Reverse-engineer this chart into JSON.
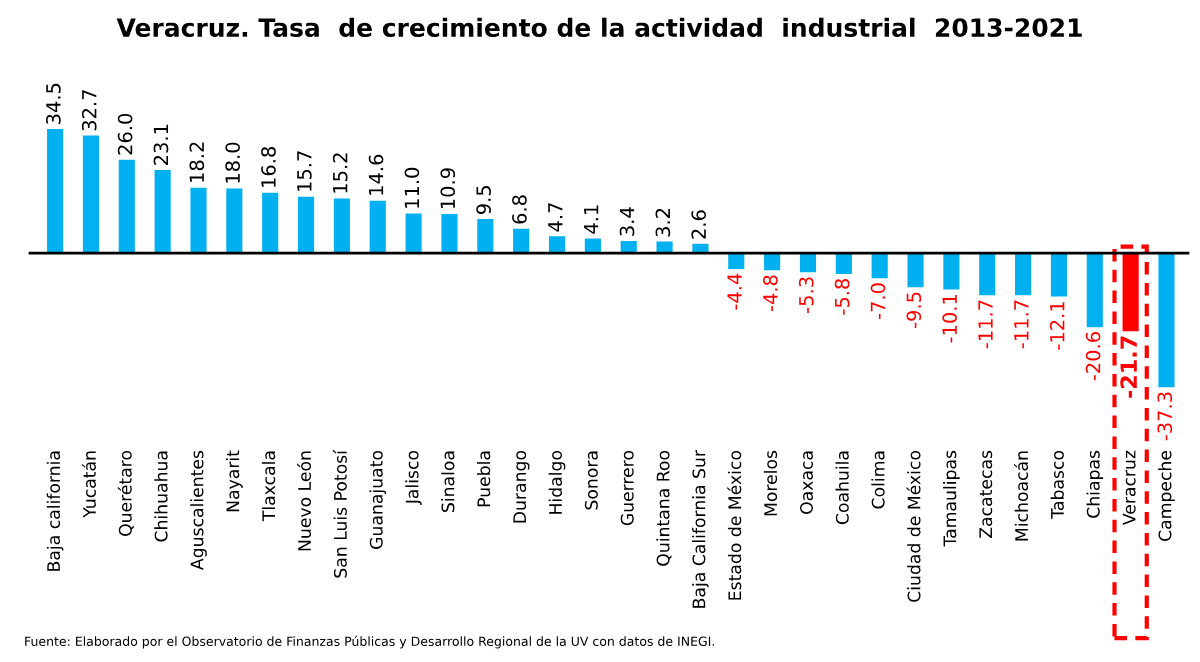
{
  "chart_data": {
    "type": "bar",
    "title": "Veracruz. Tasa  de crecimiento de la actividad  industrial  2013-2021",
    "categories": [
      "Baja california",
      "Yucatán",
      "Querétaro",
      "Chihuahua",
      "Aguscalientes",
      "Nayarit",
      "Tlaxcala",
      "Nuevo León",
      "San Luis Potosí",
      "Guanajuato",
      "Jalisco",
      "Sinaloa",
      "Puebla",
      "Durango",
      "Hidalgo",
      "Sonora",
      "Guerrero",
      "Quintana Roo",
      "Baja California Sur",
      "Estado de México",
      "Morelos",
      "Oaxaca",
      "Coahuila",
      "Colima",
      "Ciudad de México",
      "Tamaulipas",
      "Zacatecas",
      "Michoacán",
      "Tabasco",
      "Chiapas",
      "Veracruz",
      "Campeche"
    ],
    "values": [
      34.5,
      32.7,
      26.0,
      23.1,
      18.2,
      18.0,
      16.8,
      15.7,
      15.2,
      14.6,
      11.0,
      10.9,
      9.5,
      6.8,
      4.7,
      4.1,
      3.4,
      3.2,
      2.6,
      -4.4,
      -4.8,
      -5.3,
      -5.8,
      -7.0,
      -9.5,
      -10.1,
      -11.7,
      -11.7,
      -12.1,
      -20.6,
      -21.7,
      -37.3
    ],
    "value_labels": [
      "34.5",
      "32.7",
      "26.0",
      "23.1",
      "18.2",
      "18.0",
      "16.8",
      "15.7",
      "15.2",
      "14.6",
      "11.0",
      "10.9",
      "9.5",
      "6.8",
      "4.7",
      "4.1",
      "3.4",
      "3.2",
      "2.6",
      "-4.4",
      "-4.8",
      "-5.3",
      "-5.8",
      "-7.0",
      "-9.5",
      "-10.1",
      "-11.7",
      "-11.7",
      "-12.1",
      "-20.6",
      "-21.7",
      "-37.3"
    ],
    "colors": [
      "#00b0f0",
      "#00b0f0",
      "#00b0f0",
      "#00b0f0",
      "#00b0f0",
      "#00b0f0",
      "#00b0f0",
      "#00b0f0",
      "#00b0f0",
      "#00b0f0",
      "#00b0f0",
      "#00b0f0",
      "#00b0f0",
      "#00b0f0",
      "#00b0f0",
      "#00b0f0",
      "#00b0f0",
      "#00b0f0",
      "#00b0f0",
      "#00b0f0",
      "#00b0f0",
      "#00b0f0",
      "#00b0f0",
      "#00b0f0",
      "#00b0f0",
      "#00b0f0",
      "#00b0f0",
      "#00b0f0",
      "#00b0f0",
      "#00b0f0",
      "#ff0000",
      "#00b0f0"
    ],
    "annotations": [
      "Fuente: Elaborado por el Observatorio de Finanzas Públicas y Desarrollo Regional de la UV con datos de INEGI."
    ]
  }
}
